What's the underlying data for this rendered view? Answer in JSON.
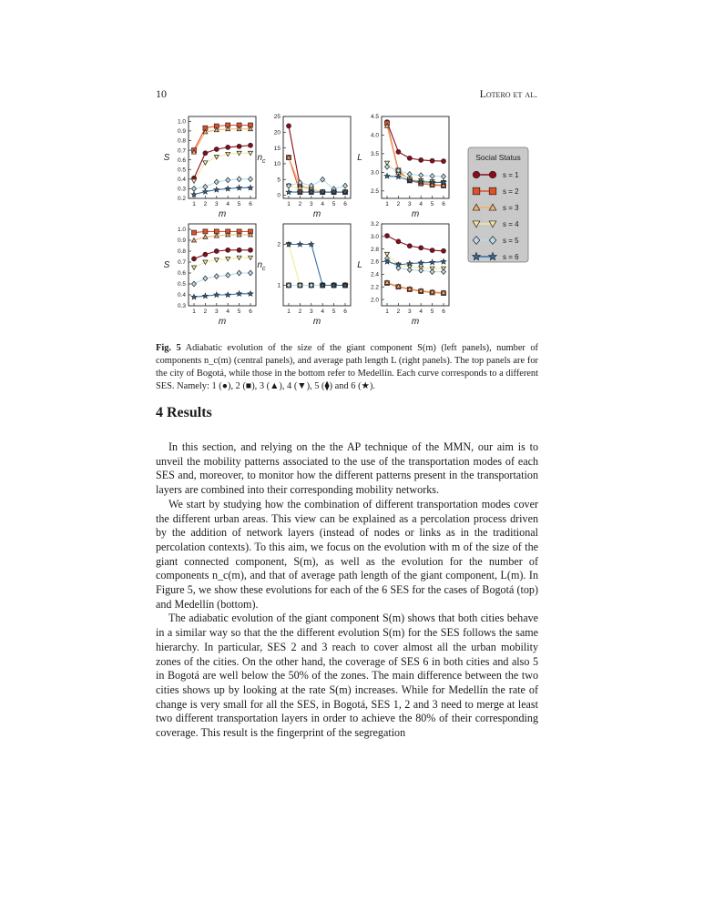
{
  "header": {
    "page_number": "10",
    "authors": "Lotero et al."
  },
  "figure": {
    "label": "Fig. 5",
    "caption": "Adiabatic evolution of the size of the giant component S(m) (left panels), number of components n_c(m) (central panels), and average path length L (right panels). The top panels are for the city of Bogotá, while those in the bottom refer to Medellín. Each curve corresponds to a different SES. Namely: 1 (●), 2 (■), 3 (▲), 4 (▼), 5 (⧫) and 6 (★).",
    "legend_title": "Social Status",
    "legend_items": [
      "s = 1",
      "s = 2",
      "s = 3",
      "s = 4",
      "s = 5",
      "s = 6"
    ]
  },
  "colors": {
    "s1": "#8b0a1a",
    "s2": "#e2502a",
    "s3": "#f4b06a",
    "s4": "#f6e89a",
    "s5": "#b8dce8",
    "s6": "#2e6fa8"
  },
  "chart_data": [
    {
      "type": "line",
      "panel": "Bogotá S",
      "xlabel": "m",
      "ylabel": "S",
      "x": [
        1,
        2,
        3,
        4,
        5,
        6
      ],
      "ylim": [
        0.2,
        1.05
      ],
      "yticks": [
        "1.0",
        "0.9",
        "0.8",
        "0.7",
        "0.6",
        "0.5",
        "0.4",
        "0.3",
        "0.2"
      ],
      "series": [
        {
          "name": "s = 1",
          "values": [
            0.41,
            0.67,
            0.71,
            0.73,
            0.74,
            0.75
          ]
        },
        {
          "name": "s = 2",
          "values": [
            0.7,
            0.93,
            0.95,
            0.96,
            0.96,
            0.96
          ]
        },
        {
          "name": "s = 3",
          "values": [
            0.68,
            0.89,
            0.91,
            0.92,
            0.92,
            0.92
          ]
        },
        {
          "name": "s = 4",
          "values": [
            0.38,
            0.57,
            0.63,
            0.66,
            0.67,
            0.67
          ]
        },
        {
          "name": "s = 5",
          "values": [
            0.3,
            0.32,
            0.37,
            0.39,
            0.4,
            0.4
          ]
        },
        {
          "name": "s = 6",
          "values": [
            0.24,
            0.27,
            0.29,
            0.3,
            0.31,
            0.31
          ]
        }
      ]
    },
    {
      "type": "line",
      "panel": "Bogotá n_c",
      "xlabel": "m",
      "ylabel": "n_c",
      "x": [
        1,
        2,
        3,
        4,
        5,
        6
      ],
      "ylim": [
        -1,
        25
      ],
      "yticks": [
        "25",
        "20",
        "15",
        "10",
        "5",
        "0"
      ],
      "series": [
        {
          "name": "s = 1",
          "values": [
            22,
            3,
            2,
            1,
            1,
            1
          ]
        },
        {
          "name": "s = 2",
          "values": [
            12,
            1,
            1,
            1,
            1,
            1
          ]
        },
        {
          "name": "s = 3",
          "values": [
            12,
            3,
            2,
            1,
            1,
            1
          ]
        },
        {
          "name": "s = 4",
          "values": [
            3,
            2,
            2,
            1,
            1,
            1
          ]
        },
        {
          "name": "s = 5",
          "values": [
            3,
            4,
            3,
            5,
            2,
            3
          ]
        },
        {
          "name": "s = 6",
          "values": [
            1,
            1,
            1,
            1,
            1,
            1
          ]
        }
      ]
    },
    {
      "type": "line",
      "panel": "Bogotá L",
      "xlabel": "m",
      "ylabel": "L",
      "x": [
        1,
        2,
        3,
        4,
        5,
        6
      ],
      "ylim": [
        2.3,
        4.5
      ],
      "yticks": [
        "4.5",
        "4.0",
        "3.5",
        "3.0",
        "2.5"
      ],
      "series": [
        {
          "name": "s = 1",
          "values": [
            4.35,
            3.55,
            3.38,
            3.33,
            3.31,
            3.3
          ]
        },
        {
          "name": "s = 2",
          "values": [
            4.32,
            3.05,
            2.78,
            2.7,
            2.66,
            2.64
          ]
        },
        {
          "name": "s = 3",
          "values": [
            4.25,
            3.0,
            2.8,
            2.72,
            2.68,
            2.66
          ]
        },
        {
          "name": "s = 4",
          "values": [
            3.25,
            2.95,
            2.82,
            2.78,
            2.75,
            2.73
          ]
        },
        {
          "name": "s = 5",
          "values": [
            3.15,
            3.05,
            2.95,
            2.92,
            2.9,
            2.89
          ]
        },
        {
          "name": "s = 6",
          "values": [
            2.9,
            2.88,
            2.78,
            2.75,
            2.73,
            2.73
          ]
        }
      ]
    },
    {
      "type": "line",
      "panel": "Medellín S",
      "xlabel": "m",
      "ylabel": "S",
      "x": [
        1,
        2,
        3,
        4,
        5,
        6
      ],
      "ylim": [
        0.3,
        1.05
      ],
      "yticks": [
        "1.0",
        "0.9",
        "0.8",
        "0.7",
        "0.6",
        "0.5",
        "0.4",
        "0.3"
      ],
      "series": [
        {
          "name": "s = 1",
          "values": [
            0.73,
            0.77,
            0.8,
            0.81,
            0.81,
            0.81
          ]
        },
        {
          "name": "s = 2",
          "values": [
            0.97,
            0.98,
            0.98,
            0.98,
            0.98,
            0.98
          ]
        },
        {
          "name": "s = 3",
          "values": [
            0.9,
            0.93,
            0.94,
            0.95,
            0.95,
            0.95
          ]
        },
        {
          "name": "s = 4",
          "values": [
            0.65,
            0.7,
            0.72,
            0.73,
            0.74,
            0.74
          ]
        },
        {
          "name": "s = 5",
          "values": [
            0.5,
            0.55,
            0.57,
            0.58,
            0.6,
            0.6
          ]
        },
        {
          "name": "s = 6",
          "values": [
            0.38,
            0.39,
            0.4,
            0.4,
            0.41,
            0.41
          ]
        }
      ]
    },
    {
      "type": "line",
      "panel": "Medellín n_c",
      "xlabel": "m",
      "ylabel": "n_c",
      "x": [
        1,
        2,
        3,
        4,
        5,
        6
      ],
      "ylim": [
        0.5,
        2.5
      ],
      "yticks": [
        "2",
        "1"
      ],
      "series": [
        {
          "name": "s = 1",
          "values": [
            1,
            1,
            1,
            1,
            1,
            1
          ]
        },
        {
          "name": "s = 2",
          "values": [
            1,
            1,
            1,
            1,
            1,
            1
          ]
        },
        {
          "name": "s = 3",
          "values": [
            1,
            1,
            1,
            1,
            1,
            1
          ]
        },
        {
          "name": "s = 4",
          "values": [
            2,
            1,
            1,
            1,
            1,
            1
          ]
        },
        {
          "name": "s = 5",
          "values": [
            1,
            1,
            1,
            1,
            1,
            1
          ]
        },
        {
          "name": "s = 6",
          "values": [
            2,
            2,
            2,
            1,
            1,
            1
          ]
        }
      ]
    },
    {
      "type": "line",
      "panel": "Medellín L",
      "xlabel": "m",
      "ylabel": "L",
      "x": [
        1,
        2,
        3,
        4,
        5,
        6
      ],
      "ylim": [
        1.9,
        3.2
      ],
      "yticks": [
        "3.2",
        "3.0",
        "2.8",
        "2.6",
        "2.4",
        "2.2",
        "2.0"
      ],
      "series": [
        {
          "name": "s = 1",
          "values": [
            3.01,
            2.92,
            2.85,
            2.82,
            2.78,
            2.77
          ]
        },
        {
          "name": "s = 2",
          "values": [
            2.26,
            2.2,
            2.16,
            2.13,
            2.11,
            2.1
          ]
        },
        {
          "name": "s = 3",
          "values": [
            2.27,
            2.21,
            2.17,
            2.14,
            2.12,
            2.11
          ]
        },
        {
          "name": "s = 4",
          "values": [
            2.72,
            2.55,
            2.52,
            2.5,
            2.49,
            2.49
          ]
        },
        {
          "name": "s = 5",
          "values": [
            2.65,
            2.5,
            2.47,
            2.46,
            2.44,
            2.44
          ]
        },
        {
          "name": "s = 6",
          "values": [
            2.6,
            2.55,
            2.57,
            2.58,
            2.59,
            2.6
          ]
        }
      ]
    }
  ],
  "section": {
    "number": "4",
    "title": "Results"
  },
  "paragraphs": [
    "In this section, and relying on the the AP technique of the MMN, our aim is to unveil the mobility patterns associated to the use of the transportation modes of each SES and, moreover, to monitor how the different patterns present in the transportation layers are combined into their corresponding mobility networks.",
    "We start by studying how the combination of different transportation modes cover the different urban areas. This view can be explained as a percolation process driven by the addition of network layers (instead of nodes or links as in the traditional percolation contexts). To this aim, we focus on the evolution with m of the size of the giant connected component, S(m), as well as the evolution for the number of components n_c(m), and that of average path length of the giant component, L(m). In Figure 5, we show these evolutions for each of the 6 SES for the cases of Bogotá (top) and Medellín (bottom).",
    "The adiabatic evolution of the giant component S(m) shows that both cities behave in a similar way so that the the different evolution S(m) for the SES follows the same hierarchy. In particular, SES 2 and 3 reach to cover almost all the urban mobility zones of the cities. On the other hand, the coverage of SES 6 in both cities and also 5 in Bogotá are well below the 50% of the zones. The main difference between the two cities shows up by looking at the rate S(m) increases. While for Medellín the rate of change is very small for all the SES, in Bogotá, SES 1, 2 and 3 need to merge at least two different transportation layers in order to achieve the 80% of their corresponding coverage. This result is the fingerprint of the segregation"
  ]
}
